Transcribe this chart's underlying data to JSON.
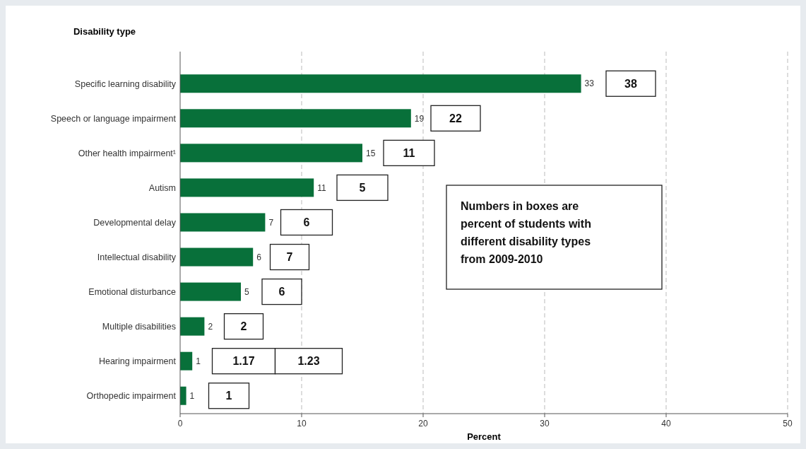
{
  "chart_data": {
    "type": "bar",
    "orientation": "horizontal",
    "ylabel": "Disability type",
    "xlabel": "Percent",
    "categories": [
      "Specific learning disability",
      "Speech or language impairment",
      "Other health impairment¹",
      "Autism",
      "Developmental delay",
      "Intellectual disability",
      "Emotional disturbance",
      "Multiple disabilities",
      "Hearing impairment",
      "Orthopedic impairment"
    ],
    "values": [
      33,
      19,
      15,
      11,
      7,
      6,
      5,
      2,
      1,
      0.5
    ],
    "value_labels": [
      "33",
      "19",
      "15",
      "11",
      "7",
      "6",
      "5",
      "2",
      "1",
      "1"
    ],
    "color": "#08703a",
    "xlim": [
      0,
      50
    ],
    "xticks": [
      0,
      10,
      20,
      30,
      40,
      50
    ],
    "grid": "x",
    "annotations": [
      "38",
      "22",
      "11",
      "5",
      "6",
      "7",
      "6",
      "2",
      "1.17",
      "1.23",
      "1",
      "Numbers in boxes are percent of students with different disability types from 2009-2010"
    ]
  }
}
